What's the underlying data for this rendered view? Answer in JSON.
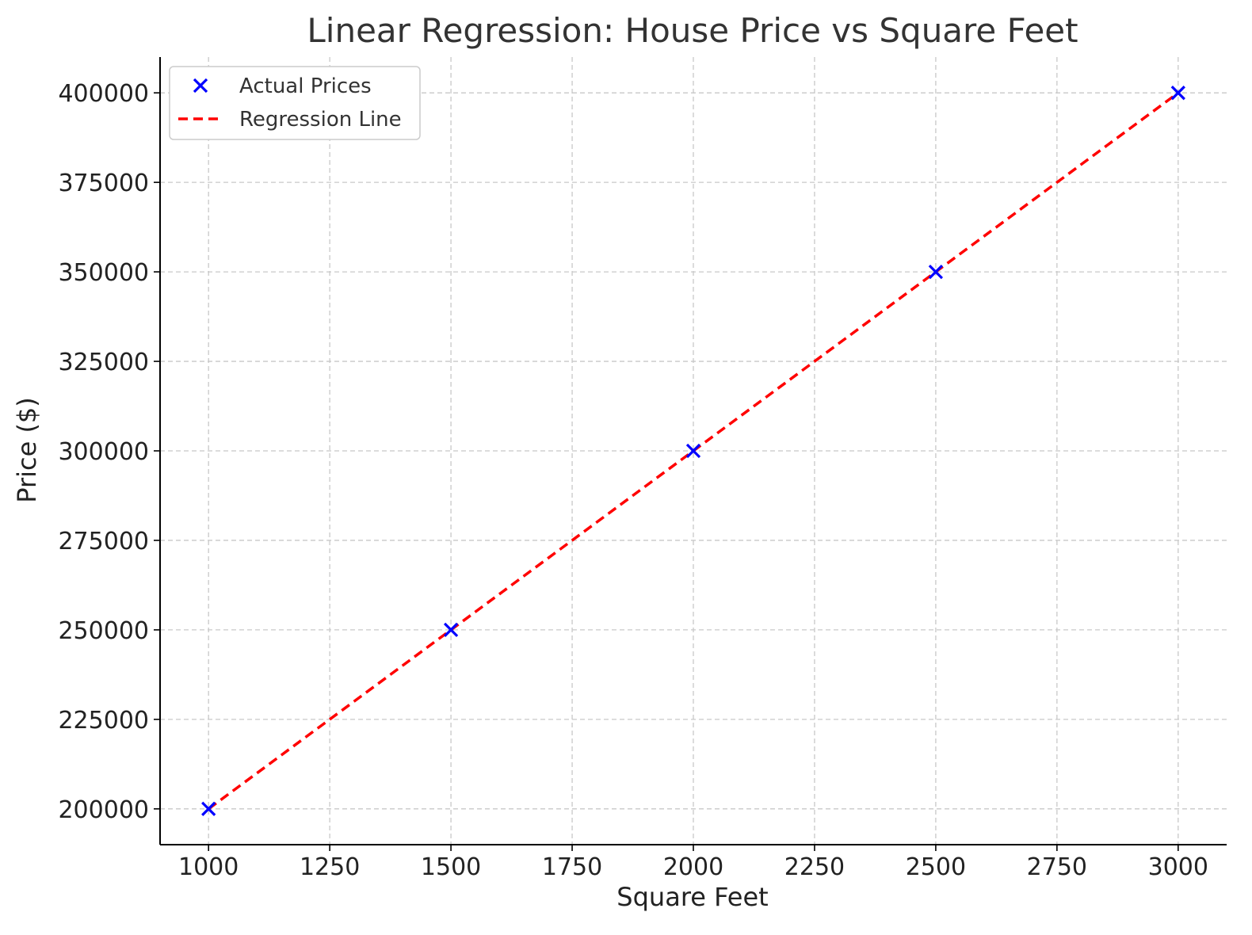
{
  "chart_data": {
    "type": "scatter",
    "title": "Linear Regression: House Price vs Square Feet",
    "xlabel": "Square Feet",
    "ylabel": "Price ($)",
    "xlim": [
      900,
      3100
    ],
    "ylim": [
      190000,
      410000
    ],
    "xticks": [
      1000,
      1250,
      1500,
      1750,
      2000,
      2250,
      2500,
      2750,
      3000
    ],
    "yticks": [
      200000,
      225000,
      250000,
      275000,
      300000,
      325000,
      350000,
      375000,
      400000
    ],
    "grid": true,
    "legend_position": "top-left",
    "series": [
      {
        "name": "Actual Prices",
        "kind": "scatter",
        "marker": "x",
        "color": "#0000ff",
        "x": [
          1000,
          1500,
          2000,
          2500,
          3000
        ],
        "y": [
          200000,
          250000,
          300000,
          350000,
          400000
        ]
      },
      {
        "name": "Regression Line",
        "kind": "line",
        "style": "dashed",
        "color": "#ff0000",
        "x": [
          1000,
          3000
        ],
        "y": [
          200000,
          400000
        ]
      }
    ]
  }
}
